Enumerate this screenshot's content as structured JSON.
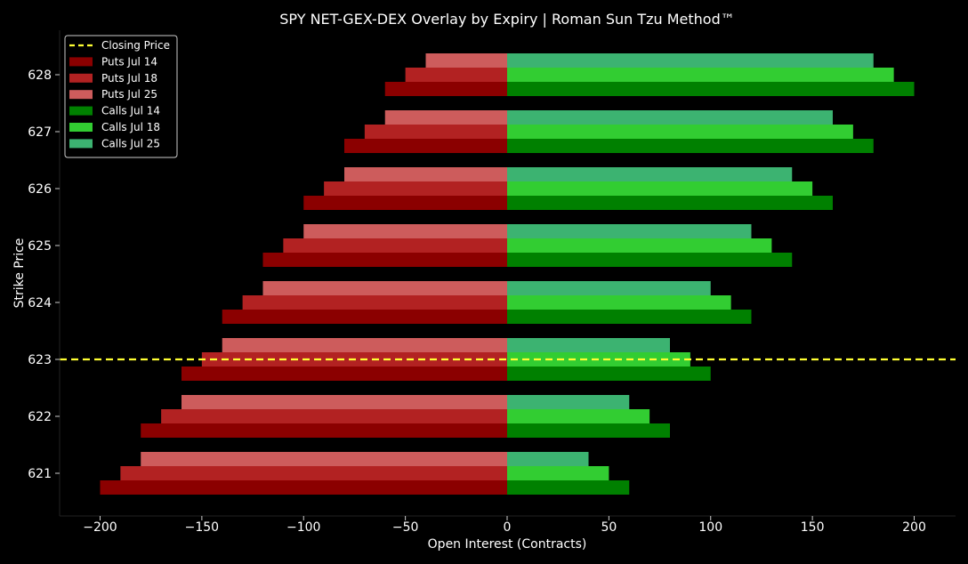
{
  "chart_data": {
    "type": "bar",
    "orientation": "horizontal",
    "title": "SPY NET-GEX-DEX Overlay by Expiry | Roman Sun Tzu Method™",
    "xlabel": "Open Interest (Contracts)",
    "ylabel": "Strike Price",
    "xlim": [
      -220,
      220
    ],
    "x_ticks": [
      -200,
      -150,
      -100,
      -50,
      0,
      50,
      100,
      150,
      200
    ],
    "x_tick_labels": [
      "−200",
      "−150",
      "−100",
      "−50",
      "0",
      "50",
      "100",
      "150",
      "200"
    ],
    "categories": [
      "621",
      "622",
      "623",
      "624",
      "625",
      "626",
      "627",
      "628"
    ],
    "closing_price": {
      "label": "Closing Price",
      "value": 623,
      "color": "#ffff33"
    },
    "grid": false,
    "legend_position": "top-left",
    "series": [
      {
        "name": "Puts Jul 14",
        "color": "#8b0000",
        "slot": 0,
        "values": [
          -200,
          -180,
          -160,
          -140,
          -120,
          -100,
          -80,
          -60
        ]
      },
      {
        "name": "Puts Jul 18",
        "color": "#b22222",
        "slot": 1,
        "values": [
          -190,
          -170,
          -150,
          -130,
          -110,
          -90,
          -70,
          -50
        ]
      },
      {
        "name": "Puts Jul 25",
        "color": "#cd5c5c",
        "slot": 2,
        "values": [
          -180,
          -160,
          -140,
          -120,
          -100,
          -80,
          -60,
          -40
        ]
      },
      {
        "name": "Calls Jul 14",
        "color": "#008000",
        "slot": 0,
        "values": [
          60,
          80,
          100,
          120,
          140,
          160,
          180,
          200
        ]
      },
      {
        "name": "Calls Jul 18",
        "color": "#32cd32",
        "slot": 1,
        "values": [
          50,
          70,
          90,
          110,
          130,
          150,
          170,
          190
        ]
      },
      {
        "name": "Calls Jul 25",
        "color": "#3cb371",
        "slot": 2,
        "values": [
          40,
          60,
          80,
          100,
          120,
          140,
          160,
          180
        ]
      }
    ]
  }
}
